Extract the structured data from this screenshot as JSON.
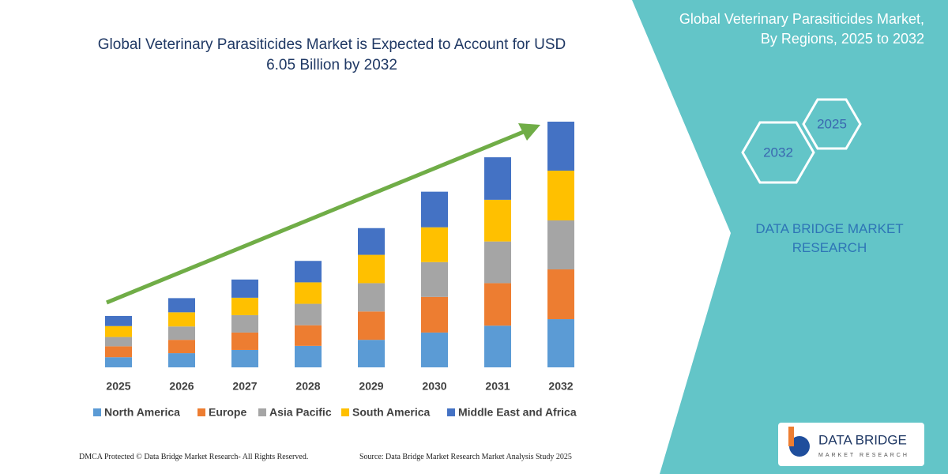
{
  "chart_data": {
    "type": "stacked_bar",
    "title": "Global Veterinary Parasiticides Market is Expected to Account for USD 6.05 Billion by 2032",
    "categories": [
      "2025",
      "2026",
      "2027",
      "2028",
      "2029",
      "2030",
      "2031",
      "2032"
    ],
    "series": [
      {
        "name": "North America",
        "color": "#5b9bd5",
        "values": [
          0.25,
          0.35,
          0.43,
          0.53,
          0.68,
          0.86,
          1.03,
          1.19
        ]
      },
      {
        "name": "Europe",
        "color": "#ed7d31",
        "values": [
          0.27,
          0.33,
          0.43,
          0.51,
          0.7,
          0.88,
          1.05,
          1.23
        ]
      },
      {
        "name": "Asia Pacific",
        "color": "#a5a5a5",
        "values": [
          0.23,
          0.33,
          0.43,
          0.53,
          0.7,
          0.86,
          1.03,
          1.21
        ]
      },
      {
        "name": "South America",
        "color": "#ffc000",
        "values": [
          0.27,
          0.35,
          0.43,
          0.53,
          0.7,
          0.86,
          1.03,
          1.23
        ]
      },
      {
        "name": "Middle East and Africa",
        "color": "#4472c4",
        "values": [
          0.25,
          0.35,
          0.45,
          0.53,
          0.66,
          0.88,
          1.05,
          1.21
        ]
      }
    ],
    "legend": "bottom"
  },
  "panel": {
    "title": "Global Veterinary Parasiticides Market, By Regions, 2025 to 2032",
    "hexagons": [
      "2032",
      "2025"
    ],
    "brand": "DATA BRIDGE MARKET RESEARCH"
  },
  "footer": {
    "left": "DMCA Protected © Data Bridge Market Research-  All Rights Reserved.",
    "right": "Source: Data Bridge Market Research  Market Analysis Study 2025"
  },
  "logo": {
    "name": "DATA BRIDGE",
    "tagline": "MARKET RESEARCH"
  }
}
